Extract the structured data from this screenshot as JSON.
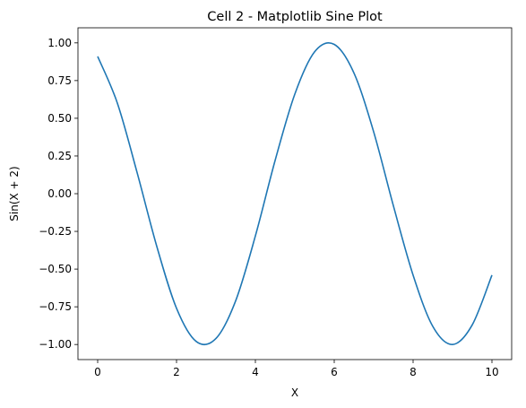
{
  "chart_data": {
    "type": "line",
    "title": "Cell 2 - Matplotlib Sine Plot",
    "xlabel": "X",
    "ylabel": "Sin(X + 2)",
    "xlim": [
      -0.5,
      10.5
    ],
    "ylim": [
      -1.1,
      1.1
    ],
    "x_ticks": [
      0,
      2,
      4,
      6,
      8,
      10
    ],
    "x_tick_labels": [
      "0",
      "2",
      "4",
      "6",
      "8",
      "10"
    ],
    "y_ticks": [
      1.0,
      0.75,
      0.5,
      0.25,
      0.0,
      -0.25,
      -0.5,
      -0.75,
      -1.0
    ],
    "y_tick_labels": [
      "1.00",
      "0.75",
      "0.50",
      "0.25",
      "0.00",
      "−0.25",
      "−0.50",
      "−0.75",
      "−1.00"
    ],
    "grid": false,
    "legend": "none",
    "series": [
      {
        "color": "#1f77b4",
        "x": [
          0,
          0.5,
          1,
          1.5,
          2,
          2.5,
          3,
          3.5,
          4,
          4.5,
          5,
          5.5,
          6,
          6.5,
          7,
          7.5,
          8,
          8.5,
          9,
          9.5,
          10
        ],
        "y": [
          0.91,
          0.6,
          0.14,
          -0.35,
          -0.76,
          -0.98,
          -0.96,
          -0.71,
          -0.28,
          0.22,
          0.66,
          0.94,
          0.99,
          0.8,
          0.41,
          -0.08,
          -0.54,
          -0.88,
          -1.0,
          -0.87,
          -0.54
        ]
      }
    ]
  }
}
